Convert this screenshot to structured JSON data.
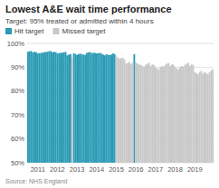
{
  "chart_data": {
    "type": "bar",
    "title": "Lowest A&E wait time performance",
    "subtitle": "Target: 95% treated or admitted within 4 hours",
    "source": "Source: NHS England",
    "categories": [
      null,
      null,
      null,
      null,
      null,
      null,
      "2011",
      null,
      null,
      null,
      null,
      null,
      null,
      null,
      null,
      null,
      null,
      null,
      "2012",
      null,
      null,
      null,
      null,
      null,
      null,
      null,
      null,
      null,
      null,
      null,
      "2013",
      null,
      null,
      null,
      null,
      null,
      null,
      null,
      null,
      null,
      null,
      null,
      "2014",
      null,
      null,
      null,
      null,
      null,
      null,
      null,
      null,
      null,
      null,
      null,
      "2015",
      null,
      null,
      null,
      null,
      null,
      null,
      null,
      null,
      null,
      null,
      null,
      "2016",
      null,
      null,
      null,
      null,
      null,
      null,
      null,
      null,
      null,
      null,
      null,
      "2017",
      null,
      null,
      null,
      null,
      null,
      null,
      null,
      null,
      null,
      null,
      null,
      "2018",
      null,
      null,
      null,
      null,
      null,
      null,
      null,
      null,
      null,
      null,
      null,
      "2019",
      null,
      null,
      null,
      null,
      null,
      null,
      null,
      null,
      null,
      null,
      null
    ],
    "series": [
      {
        "name": "Hit target",
        "color": "#2a9ab5",
        "values": [
          96.5,
          96.7,
          96.8,
          96.2,
          96.5,
          96.3,
          95.8,
          95.9,
          96.0,
          96.1,
          96.3,
          96.4,
          96.5,
          96.7,
          96.8,
          96.2,
          96.5,
          96.3,
          95.8,
          95.9,
          96.0,
          96.1,
          96.3,
          96.4,
          95.0,
          95.3,
          95.5,
          null,
          95.8,
          95.6,
          95.2,
          95.5,
          95.7,
          95.4,
          95.3,
          95.2,
          96.0,
          96.2,
          96.4,
          95.8,
          96.1,
          96.0,
          95.8,
          95.9,
          96.0,
          95.7,
          95.3,
          95.0,
          95.5,
          95.2,
          95.1,
          95.3,
          95.8,
          95.5,
          null,
          null,
          null,
          null,
          null,
          null,
          null,
          null,
          null,
          null,
          null,
          95.5,
          null,
          null,
          null,
          null,
          null,
          null,
          null,
          null,
          null,
          null,
          null,
          null,
          null,
          null,
          null,
          null,
          null,
          null,
          null,
          null,
          null,
          null,
          null,
          null,
          null,
          null,
          null,
          null,
          null,
          null,
          null,
          null,
          null,
          null,
          null,
          null,
          null,
          null,
          null,
          null,
          null,
          null,
          null,
          null,
          null,
          null,
          null,
          null
        ]
      },
      {
        "name": "Missed target",
        "color": "#c8c8c8",
        "values": [
          null,
          null,
          null,
          null,
          null,
          null,
          null,
          null,
          null,
          null,
          null,
          null,
          null,
          null,
          null,
          null,
          null,
          null,
          null,
          null,
          null,
          null,
          null,
          null,
          null,
          null,
          null,
          94.2,
          null,
          null,
          null,
          null,
          null,
          null,
          null,
          null,
          null,
          null,
          null,
          null,
          null,
          null,
          null,
          null,
          null,
          null,
          null,
          null,
          null,
          null,
          null,
          null,
          null,
          null,
          94.5,
          94.2,
          93.5,
          93.8,
          94.0,
          93.2,
          91.5,
          91.8,
          92.3,
          91.2,
          92.0,
          null,
          92.0,
          91.5,
          91.2,
          91.0,
          90.5,
          90.2,
          91.0,
          91.5,
          91.8,
          90.5,
          91.2,
          91.0,
          90.0,
          89.5,
          89.0,
          90.0,
          90.5,
          90.2,
          91.0,
          91.5,
          91.8,
          90.5,
          91.2,
          91.0,
          90.0,
          89.5,
          89.0,
          90.0,
          90.5,
          90.2,
          91.0,
          91.5,
          91.8,
          90.5,
          91.2,
          91.0,
          88.0,
          87.5,
          87.0,
          88.0,
          88.5,
          87.2,
          88.0,
          87.5,
          87.0,
          88.0,
          88.5,
          89.2
        ]
      }
    ],
    "ylim": [
      50,
      100
    ],
    "yticks": [
      {
        "value": 50,
        "label": "50%"
      },
      {
        "value": 60,
        "label": "60%"
      },
      {
        "value": 70,
        "label": "70%"
      },
      {
        "value": 80,
        "label": "80%"
      },
      {
        "value": 90,
        "label": "90%"
      },
      {
        "value": 100,
        "label": "100%"
      }
    ],
    "grid": true,
    "legend": "upper-left"
  }
}
